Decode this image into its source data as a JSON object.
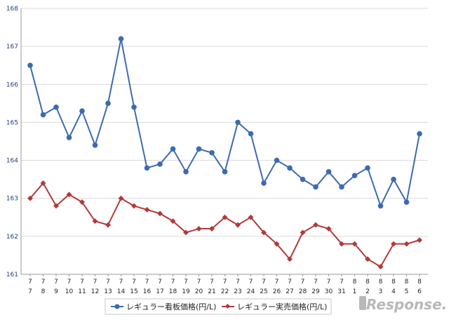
{
  "chart_data": {
    "type": "line",
    "categories": [
      [
        "7",
        "7"
      ],
      [
        "7",
        "8"
      ],
      [
        "7",
        "9"
      ],
      [
        "7",
        "10"
      ],
      [
        "7",
        "11"
      ],
      [
        "7",
        "12"
      ],
      [
        "7",
        "13"
      ],
      [
        "7",
        "14"
      ],
      [
        "7",
        "15"
      ],
      [
        "7",
        "16"
      ],
      [
        "7",
        "17"
      ],
      [
        "7",
        "18"
      ],
      [
        "7",
        "19"
      ],
      [
        "7",
        "20"
      ],
      [
        "7",
        "21"
      ],
      [
        "7",
        "22"
      ],
      [
        "7",
        "23"
      ],
      [
        "7",
        "24"
      ],
      [
        "7",
        "25"
      ],
      [
        "7",
        "26"
      ],
      [
        "7",
        "27"
      ],
      [
        "7",
        "28"
      ],
      [
        "7",
        "29"
      ],
      [
        "7",
        "30"
      ],
      [
        "7",
        "31"
      ],
      [
        "8",
        "1"
      ],
      [
        "8",
        "2"
      ],
      [
        "8",
        "3"
      ],
      [
        "8",
        "4"
      ],
      [
        "8",
        "5"
      ],
      [
        "8",
        "6"
      ]
    ],
    "series": [
      {
        "name": "レギュラー看板価格(円/L)",
        "color": "#3d6bb0",
        "marker": "circle",
        "values": [
          166.5,
          165.2,
          165.4,
          164.6,
          165.3,
          164.4,
          165.5,
          167.2,
          165.4,
          163.8,
          163.9,
          164.3,
          163.7,
          164.3,
          164.2,
          163.7,
          165.0,
          164.7,
          163.4,
          164.0,
          163.8,
          163.5,
          163.3,
          163.7,
          163.3,
          163.6,
          163.8,
          162.8,
          163.5,
          162.9,
          164.7
        ]
      },
      {
        "name": "レギュラー実売価格(円/L)",
        "color": "#b23a3a",
        "marker": "diamond",
        "values": [
          163.0,
          163.4,
          162.8,
          163.1,
          162.9,
          162.4,
          162.3,
          163.0,
          162.8,
          162.7,
          162.6,
          162.4,
          162.1,
          162.2,
          162.2,
          162.5,
          162.3,
          162.5,
          162.1,
          161.8,
          161.4,
          162.1,
          162.3,
          162.2,
          161.8,
          161.8,
          161.4,
          161.2,
          161.8,
          161.8,
          161.9
        ]
      }
    ],
    "ylim": [
      161,
      168
    ],
    "yticks": [
      161,
      162,
      163,
      164,
      165,
      166,
      167,
      168
    ],
    "grid": true,
    "legend": "bottom-center"
  },
  "watermark": "Response."
}
